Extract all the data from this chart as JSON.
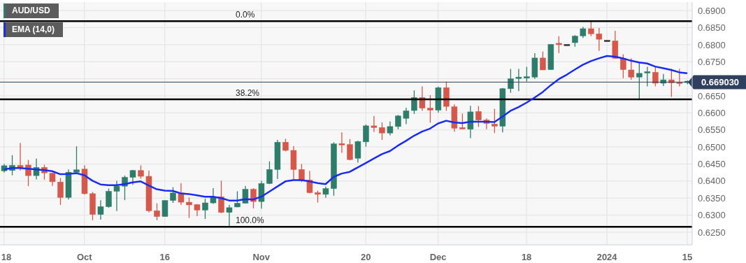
{
  "chart_data": {
    "type": "candlestick",
    "categories": [
      "18",
      null,
      null,
      null,
      null,
      null,
      null,
      null,
      null,
      null,
      "Oct",
      null,
      null,
      null,
      null,
      null,
      null,
      null,
      null,
      null,
      "16",
      null,
      null,
      null,
      null,
      null,
      null,
      null,
      null,
      null,
      null,
      null,
      "Nov",
      null,
      null,
      null,
      null,
      null,
      null,
      null,
      null,
      null,
      null,
      null,
      null,
      "20",
      null,
      null,
      null,
      null,
      null,
      null,
      null,
      null,
      "Dec",
      null,
      null,
      null,
      null,
      null,
      null,
      null,
      null,
      null,
      null,
      "18",
      null,
      null,
      null,
      null,
      null,
      null,
      null,
      null,
      null,
      "2024",
      null,
      null,
      null,
      null,
      null,
      null,
      null,
      null,
      null,
      "15"
    ],
    "series": [
      {
        "name": "AUD/USD",
        "type": "candlestick",
        "color": "#2e7d6b",
        "ohlc": [
          [
            0.643,
            0.645,
            0.6425,
            0.6445
          ],
          [
            0.6431,
            0.6476,
            0.6417,
            0.6446
          ],
          [
            0.6446,
            0.6512,
            0.6431,
            0.644
          ],
          [
            0.6447,
            0.6462,
            0.6385,
            0.6416
          ],
          [
            0.6416,
            0.6466,
            0.6405,
            0.644
          ],
          [
            0.644,
            0.6448,
            0.6404,
            0.6424
          ],
          [
            0.6423,
            0.6425,
            0.6386,
            0.6398
          ],
          [
            0.6397,
            0.6409,
            0.633,
            0.6352
          ],
          [
            0.6352,
            0.6434,
            0.6346,
            0.6426
          ],
          [
            0.6426,
            0.6502,
            0.6421,
            0.6433
          ],
          [
            0.6435,
            0.6446,
            0.636,
            0.6363
          ],
          [
            0.6363,
            0.6368,
            0.6285,
            0.6302
          ],
          [
            0.6302,
            0.6344,
            0.6287,
            0.6325
          ],
          [
            0.6325,
            0.6378,
            0.6322,
            0.637
          ],
          [
            0.637,
            0.6401,
            0.6312,
            0.6385
          ],
          [
            0.6385,
            0.6416,
            0.6344,
            0.6411
          ],
          [
            0.6411,
            0.6433,
            0.6389,
            0.6431
          ],
          [
            0.6431,
            0.6446,
            0.6407,
            0.6414
          ],
          [
            0.6414,
            0.6431,
            0.6308,
            0.6313
          ],
          [
            0.6313,
            0.6335,
            0.6285,
            0.6296
          ],
          [
            0.6296,
            0.6344,
            0.6296,
            0.6343
          ],
          [
            0.6343,
            0.6382,
            0.6336,
            0.6365
          ],
          [
            0.6365,
            0.6394,
            0.633,
            0.6338
          ],
          [
            0.6338,
            0.6352,
            0.6292,
            0.633
          ],
          [
            0.6331,
            0.6333,
            0.6297,
            0.6315
          ],
          [
            0.6315,
            0.6348,
            0.6289,
            0.6336
          ],
          [
            0.6336,
            0.6379,
            0.6333,
            0.6354
          ],
          [
            0.6354,
            0.6401,
            0.6306,
            0.6308
          ],
          [
            0.6308,
            0.633,
            0.6266,
            0.6322
          ],
          [
            0.6324,
            0.637,
            0.6323,
            0.6335
          ],
          [
            0.6335,
            0.6386,
            0.6334,
            0.6376
          ],
          [
            0.6376,
            0.6379,
            0.632,
            0.634
          ],
          [
            0.634,
            0.6401,
            0.6319,
            0.6393
          ],
          [
            0.6393,
            0.6458,
            0.6391,
            0.6434
          ],
          [
            0.6434,
            0.6521,
            0.6406,
            0.6514
          ],
          [
            0.6514,
            0.6524,
            0.6487,
            0.649
          ],
          [
            0.649,
            0.6503,
            0.6404,
            0.6434
          ],
          [
            0.6434,
            0.645,
            0.6397,
            0.6401
          ],
          [
            0.6403,
            0.643,
            0.6364,
            0.6366
          ],
          [
            0.6366,
            0.6372,
            0.6337,
            0.6361
          ],
          [
            0.6361,
            0.6384,
            0.6351,
            0.6378
          ],
          [
            0.6378,
            0.6514,
            0.6357,
            0.6509
          ],
          [
            0.6508,
            0.6543,
            0.6483,
            0.6506
          ],
          [
            0.6507,
            0.6523,
            0.6461,
            0.6463
          ],
          [
            0.6467,
            0.6518,
            0.6454,
            0.6516
          ],
          [
            0.6515,
            0.6566,
            0.6501,
            0.6562
          ],
          [
            0.6562,
            0.6591,
            0.6544,
            0.6557
          ],
          [
            0.6557,
            0.6572,
            0.6521,
            0.6541
          ],
          [
            0.6541,
            0.6575,
            0.6534,
            0.656
          ],
          [
            0.656,
            0.6594,
            0.6552,
            0.6591
          ],
          [
            0.6584,
            0.6615,
            0.6567,
            0.6606
          ],
          [
            0.6607,
            0.6666,
            0.6597,
            0.6645
          ],
          [
            0.6645,
            0.6678,
            0.6606,
            0.6614
          ],
          [
            0.6614,
            0.6652,
            0.6571,
            0.6608
          ],
          [
            0.6608,
            0.6677,
            0.6601,
            0.6674
          ],
          [
            0.6674,
            0.6692,
            0.6606,
            0.6619
          ],
          [
            0.6618,
            0.6625,
            0.6545,
            0.6555
          ],
          [
            0.6555,
            0.6598,
            0.6552,
            0.6552
          ],
          [
            0.6552,
            0.6621,
            0.6526,
            0.6603
          ],
          [
            0.6604,
            0.662,
            0.6559,
            0.6579
          ],
          [
            0.6579,
            0.6584,
            0.6552,
            0.6569
          ],
          [
            0.6567,
            0.6612,
            0.6541,
            0.6561
          ],
          [
            0.6561,
            0.6673,
            0.6543,
            0.6671
          ],
          [
            0.6671,
            0.6729,
            0.6659,
            0.67
          ],
          [
            0.6701,
            0.6729,
            0.6664,
            0.6703
          ],
          [
            0.67,
            0.6735,
            0.6692,
            0.6704
          ],
          [
            0.6705,
            0.6775,
            0.67,
            0.6761
          ],
          [
            0.6761,
            0.678,
            0.6726,
            0.6726
          ],
          [
            0.6727,
            0.6802,
            0.6726,
            0.6801
          ],
          [
            0.6802,
            0.6825,
            0.6775,
            0.6801
          ],
          [
            0.6799,
            0.68,
            0.6798,
            0.6799
          ],
          [
            0.6806,
            0.6828,
            0.6794,
            0.6825
          ],
          [
            0.6826,
            0.6852,
            0.682,
            0.6847
          ],
          [
            0.6847,
            0.6869,
            0.6825,
            0.6832
          ],
          [
            0.6832,
            0.6849,
            0.6782,
            0.6816
          ],
          [
            0.6811,
            0.6812,
            0.681,
            0.6811
          ],
          [
            0.6811,
            0.6841,
            0.6759,
            0.676
          ],
          [
            0.6759,
            0.6772,
            0.6702,
            0.6727
          ],
          [
            0.6726,
            0.676,
            0.6697,
            0.6705
          ],
          [
            0.6705,
            0.6748,
            0.664,
            0.6716
          ],
          [
            0.6716,
            0.6735,
            0.6678,
            0.6719
          ],
          [
            0.6719,
            0.6735,
            0.6678,
            0.6687
          ],
          [
            0.6687,
            0.6714,
            0.6679,
            0.6697
          ],
          [
            0.6697,
            0.6729,
            0.6647,
            0.6688
          ],
          [
            0.6688,
            0.6729,
            0.6678,
            0.6685
          ],
          [
            0.6689,
            0.6695,
            0.6684,
            0.6691
          ]
        ],
        "colors": [
          "#2e7d6b",
          "#2e7d6b",
          "#d6584a",
          "#d6584a",
          "#2e7d6b",
          "#d6584a",
          "#d6584a",
          "#d6584a",
          "#2e7d6b",
          "#2e7d6b",
          "#d6584a",
          "#d6584a",
          "#2e7d6b",
          "#2e7d6b",
          "#2e7d6b",
          "#2e7d6b",
          "#2e7d6b",
          "#d6584a",
          "#d6584a",
          "#d6584a",
          "#2e7d6b",
          "#2e7d6b",
          "#d6584a",
          "#d6584a",
          "#d6584a",
          "#2e7d6b",
          "#2e7d6b",
          "#d6584a",
          "#2e7d6b",
          "#2e7d6b",
          "#2e7d6b",
          "#d6584a",
          "#2e7d6b",
          "#2e7d6b",
          "#2e7d6b",
          "#d6584a",
          "#d6584a",
          "#d6584a",
          "#d6584a",
          "#d6584a",
          "#2e7d6b",
          "#2e7d6b",
          "#d6584a",
          "#d6584a",
          "#2e7d6b",
          "#2e7d6b",
          "#d6584a",
          "#d6584a",
          "#2e7d6b",
          "#2e7d6b",
          "#2e7d6b",
          "#2e7d6b",
          "#d6584a",
          "#d6584a",
          "#2e7d6b",
          "#d6584a",
          "#d6584a",
          "#d6584a",
          "#2e7d6b",
          "#d6584a",
          "#d6584a",
          "#d6584a",
          "#2e7d6b",
          "#2e7d6b",
          "#2e7d6b",
          "#2e7d6b",
          "#2e7d6b",
          "#d6584a",
          "#2e7d6b",
          "#d6584a",
          "#333333",
          "#2e7d6b",
          "#2e7d6b",
          "#d6584a",
          "#d6584a",
          "#333333",
          "#d6584a",
          "#d6584a",
          "#d6584a",
          "#2e7d6b",
          "#2e7d6b",
          "#d6584a",
          "#2e7d6b",
          "#d6584a",
          "#d6584a",
          "#2e7d6b"
        ]
      },
      {
        "name": "EMA (14,0)",
        "type": "line",
        "color": "#1a2cf0",
        "values": [
          0.6434,
          0.6438,
          0.6438,
          0.6436,
          0.6434,
          0.6432,
          0.6429,
          0.642,
          0.6421,
          0.6423,
          0.6417,
          0.6401,
          0.639,
          0.6388,
          0.6388,
          0.6391,
          0.6396,
          0.6399,
          0.6387,
          0.6376,
          0.6372,
          0.6371,
          0.6364,
          0.6362,
          0.6358,
          0.6354,
          0.6354,
          0.635,
          0.6343,
          0.6343,
          0.6347,
          0.6346,
          0.6354,
          0.6369,
          0.6384,
          0.6399,
          0.6403,
          0.6403,
          0.6399,
          0.6394,
          0.6391,
          0.6412,
          0.6422,
          0.6427,
          0.644,
          0.6453,
          0.6466,
          0.6479,
          0.6488,
          0.6504,
          0.6518,
          0.6533,
          0.6545,
          0.6554,
          0.6569,
          0.6577,
          0.6572,
          0.657,
          0.6574,
          0.6574,
          0.6574,
          0.6573,
          0.6589,
          0.6606,
          0.6617,
          0.663,
          0.6645,
          0.6661,
          0.6681,
          0.6699,
          0.6712,
          0.6727,
          0.6741,
          0.6752,
          0.676,
          0.6767,
          0.6765,
          0.676,
          0.6753,
          0.6748,
          0.6745,
          0.6736,
          0.6731,
          0.6726,
          0.6719,
          0.6716
        ]
      }
    ],
    "ylim": [
      0.6213,
      0.6925
    ],
    "yticks": [
      {
        "value": 0.625,
        "label": "0.6250"
      },
      {
        "value": 0.63,
        "label": "0.6300"
      },
      {
        "value": 0.635,
        "label": "0.6350"
      },
      {
        "value": 0.64,
        "label": "0.6400"
      },
      {
        "value": 0.645,
        "label": "0.6450"
      },
      {
        "value": 0.65,
        "label": "0.6500"
      },
      {
        "value": 0.655,
        "label": "0.6550"
      },
      {
        "value": 0.66,
        "label": "0.6600"
      },
      {
        "value": 0.665,
        "label": "0.6650"
      },
      {
        "value": 0.67,
        "label": null
      },
      {
        "value": 0.675,
        "label": "0.6750"
      },
      {
        "value": 0.68,
        "label": "0.6800"
      },
      {
        "value": 0.685,
        "label": "0.6850"
      },
      {
        "value": 0.69,
        "label": "0.6900"
      }
    ],
    "ref_lines": [
      {
        "axis": "y",
        "value": 0.6869,
        "color": "#000000"
      },
      {
        "axis": "y",
        "value": 0.664,
        "color": "#000000"
      },
      {
        "axis": "y",
        "value": 0.6266,
        "color": "#000000"
      },
      {
        "axis": "y",
        "value": 0.66903,
        "label": "0.669030",
        "color": "#2f3f5f"
      }
    ],
    "annotations": [
      {
        "text": "0.0%",
        "y": 0.6869
      },
      {
        "text": "38.2%",
        "y": 0.664
      },
      {
        "text": "100.0%",
        "y": 0.6266
      }
    ],
    "grid": true,
    "legend": "top left"
  }
}
